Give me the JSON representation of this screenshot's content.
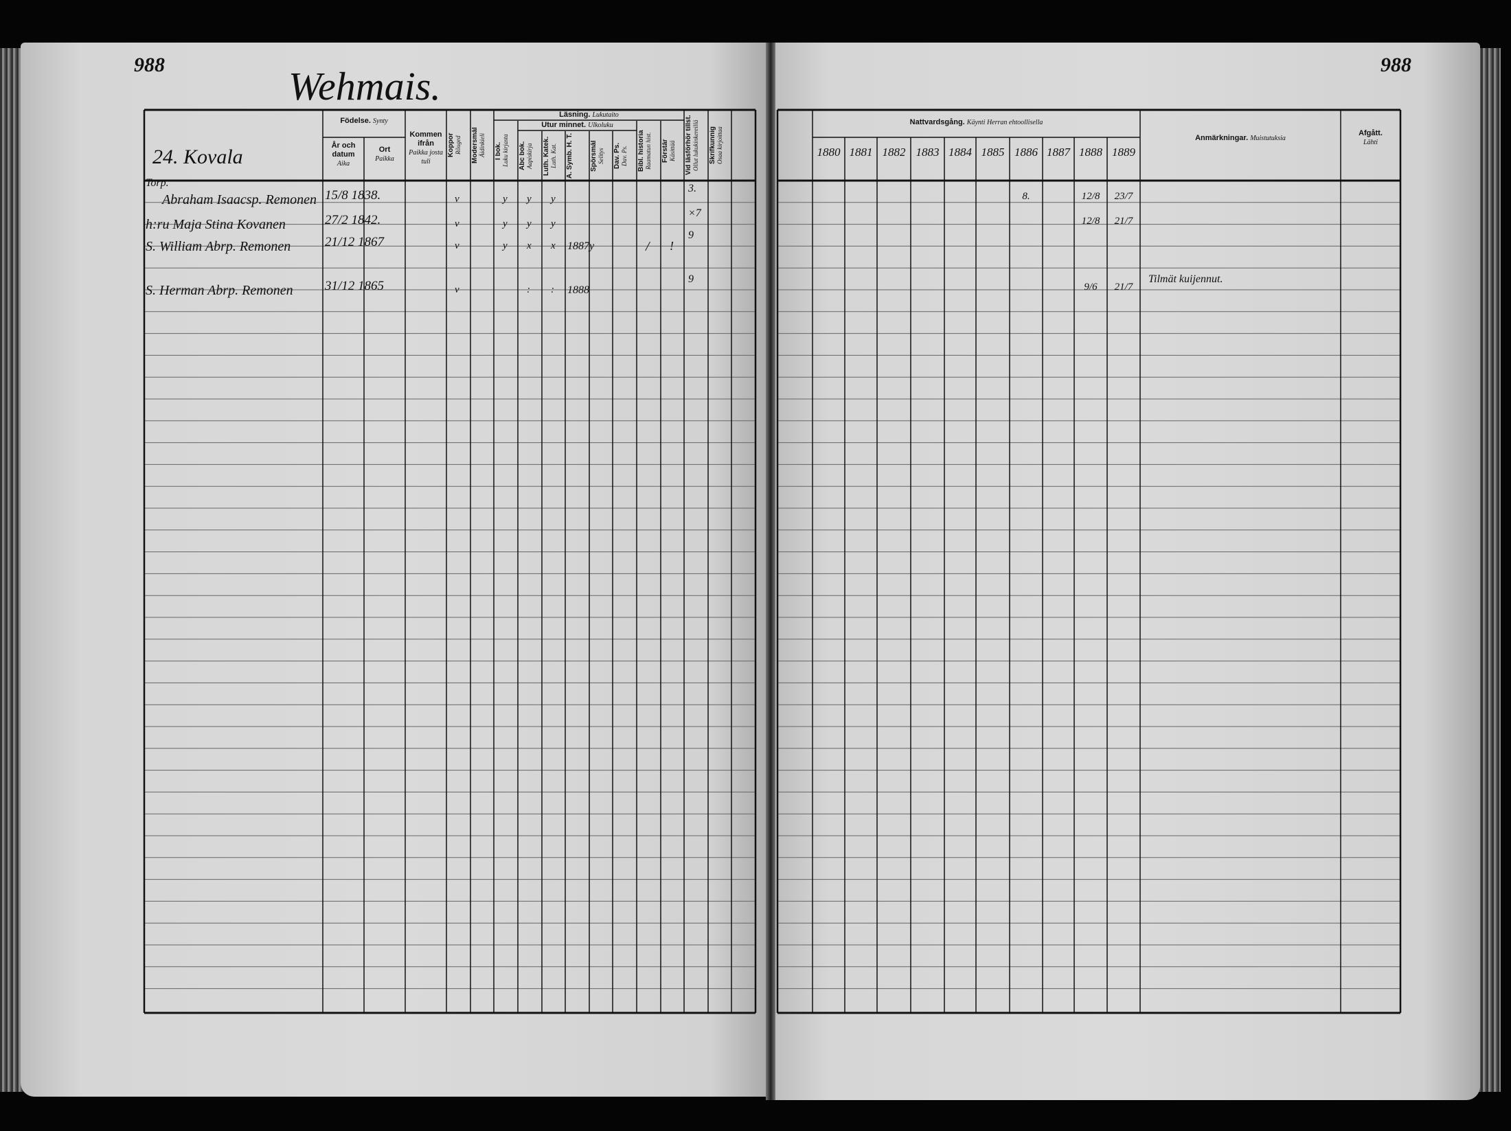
{
  "left_page": {
    "page_number": "988",
    "village": "Wehmais.",
    "farm": "24. Kovala",
    "headers": {
      "fodelse": "Födelse.",
      "fodelse_fi": "Synty",
      "ar": "År och datum",
      "ar_fi": "Aika",
      "ort": "Ort",
      "ort_fi": "Paikka",
      "kommen": "Kommen ifrån",
      "kommen_fi": "Paikka josta tuli",
      "koppor": "Koppor",
      "koppor_fi": "Rõuged",
      "modersmal": "Modersmål",
      "modersmal_fi": "Äidinkieli",
      "lasning": "Läsning.",
      "lasning_fi": "Lukutaito",
      "ibok": "I bok.",
      "ibok_fi": "Luku kirjasta",
      "utur": "Utur minnet.",
      "utur_fi": "Ulkoluku",
      "abc": "Abc bok.",
      "abc_fi": "Aapiskirja",
      "luth": "Luth. Katek.",
      "luth_fi": "Luth. Kat.",
      "symb": "A. Symb. H. T.",
      "sporsmal": "Spörsmål",
      "sporsmal_fi": "Selitys",
      "dav": "Dav. Ps.",
      "dav_fi": "Dav. Ps.",
      "bibl": "Bibl. historia",
      "bibl_fi": "Raamatun hist.",
      "forstar": "Förstår",
      "forstar_fi": "Käsittää",
      "vid": "Vid läsförhör tillst.",
      "vid_fi": "Ollut lukukinkereillä",
      "skrif": "Skrifkunnig",
      "skrif_fi": "Osaa kirjoittaa"
    },
    "rows": [
      {
        "title": "Torp.",
        "name": "Abraham Isaacsp. Remonen",
        "date": "15/8 1838.",
        "kop": "v",
        "marks": [
          "y",
          "y",
          "y"
        ],
        "symb": "",
        "bibl": "",
        "forstar": "",
        "vid": "3."
      },
      {
        "title": "",
        "name": "h:ru Maja Stina Kovanen",
        "date": "27/2 1842.",
        "kop": "v",
        "marks": [
          "y",
          "y",
          "y"
        ],
        "symb": "",
        "bibl": "",
        "forstar": "",
        "vid": "×7"
      },
      {
        "title": "",
        "name": "S. William Abrp. Remonen",
        "date": "21/12 1867",
        "kop": "v",
        "marks": [
          "y",
          "x",
          "x"
        ],
        "symb": "1887y",
        "bibl": "/",
        "forstar": "!",
        "vid": "9"
      },
      {
        "title": "",
        "name": "S. Herman Abrp. Remonen",
        "date": "31/12 1865",
        "kop": "v",
        "marks": [
          "",
          ":",
          ":"
        ],
        "symb": "1888",
        "bibl": "",
        "forstar": "",
        "vid": "9"
      }
    ]
  },
  "right_page": {
    "page_number": "988",
    "nattvard": "Nattvardsgång.",
    "nattvard_fi": "Käynti Herran ehtoollisella",
    "years": [
      "1880",
      "1881",
      "1882",
      "1883",
      "1884",
      "1885",
      "1886",
      "1887",
      "1888",
      "1889"
    ],
    "anm": "Anmärkningar.",
    "anm_fi": "Muistutuksia",
    "afgatt": "Afgått.",
    "afgatt_fi": "Lähti",
    "rows": [
      {
        "communion": {
          "1886": "8.",
          "1888": "12/8",
          "1889": "23/7"
        },
        "note": ""
      },
      {
        "communion": {
          "1888": "12/8",
          "1889": "21/7"
        },
        "note": ""
      },
      {
        "communion": {},
        "note": ""
      },
      {
        "communion": {
          "1888": "9/6",
          "1889": "21/7"
        },
        "note": "Tilmät kuijennut."
      }
    ]
  }
}
